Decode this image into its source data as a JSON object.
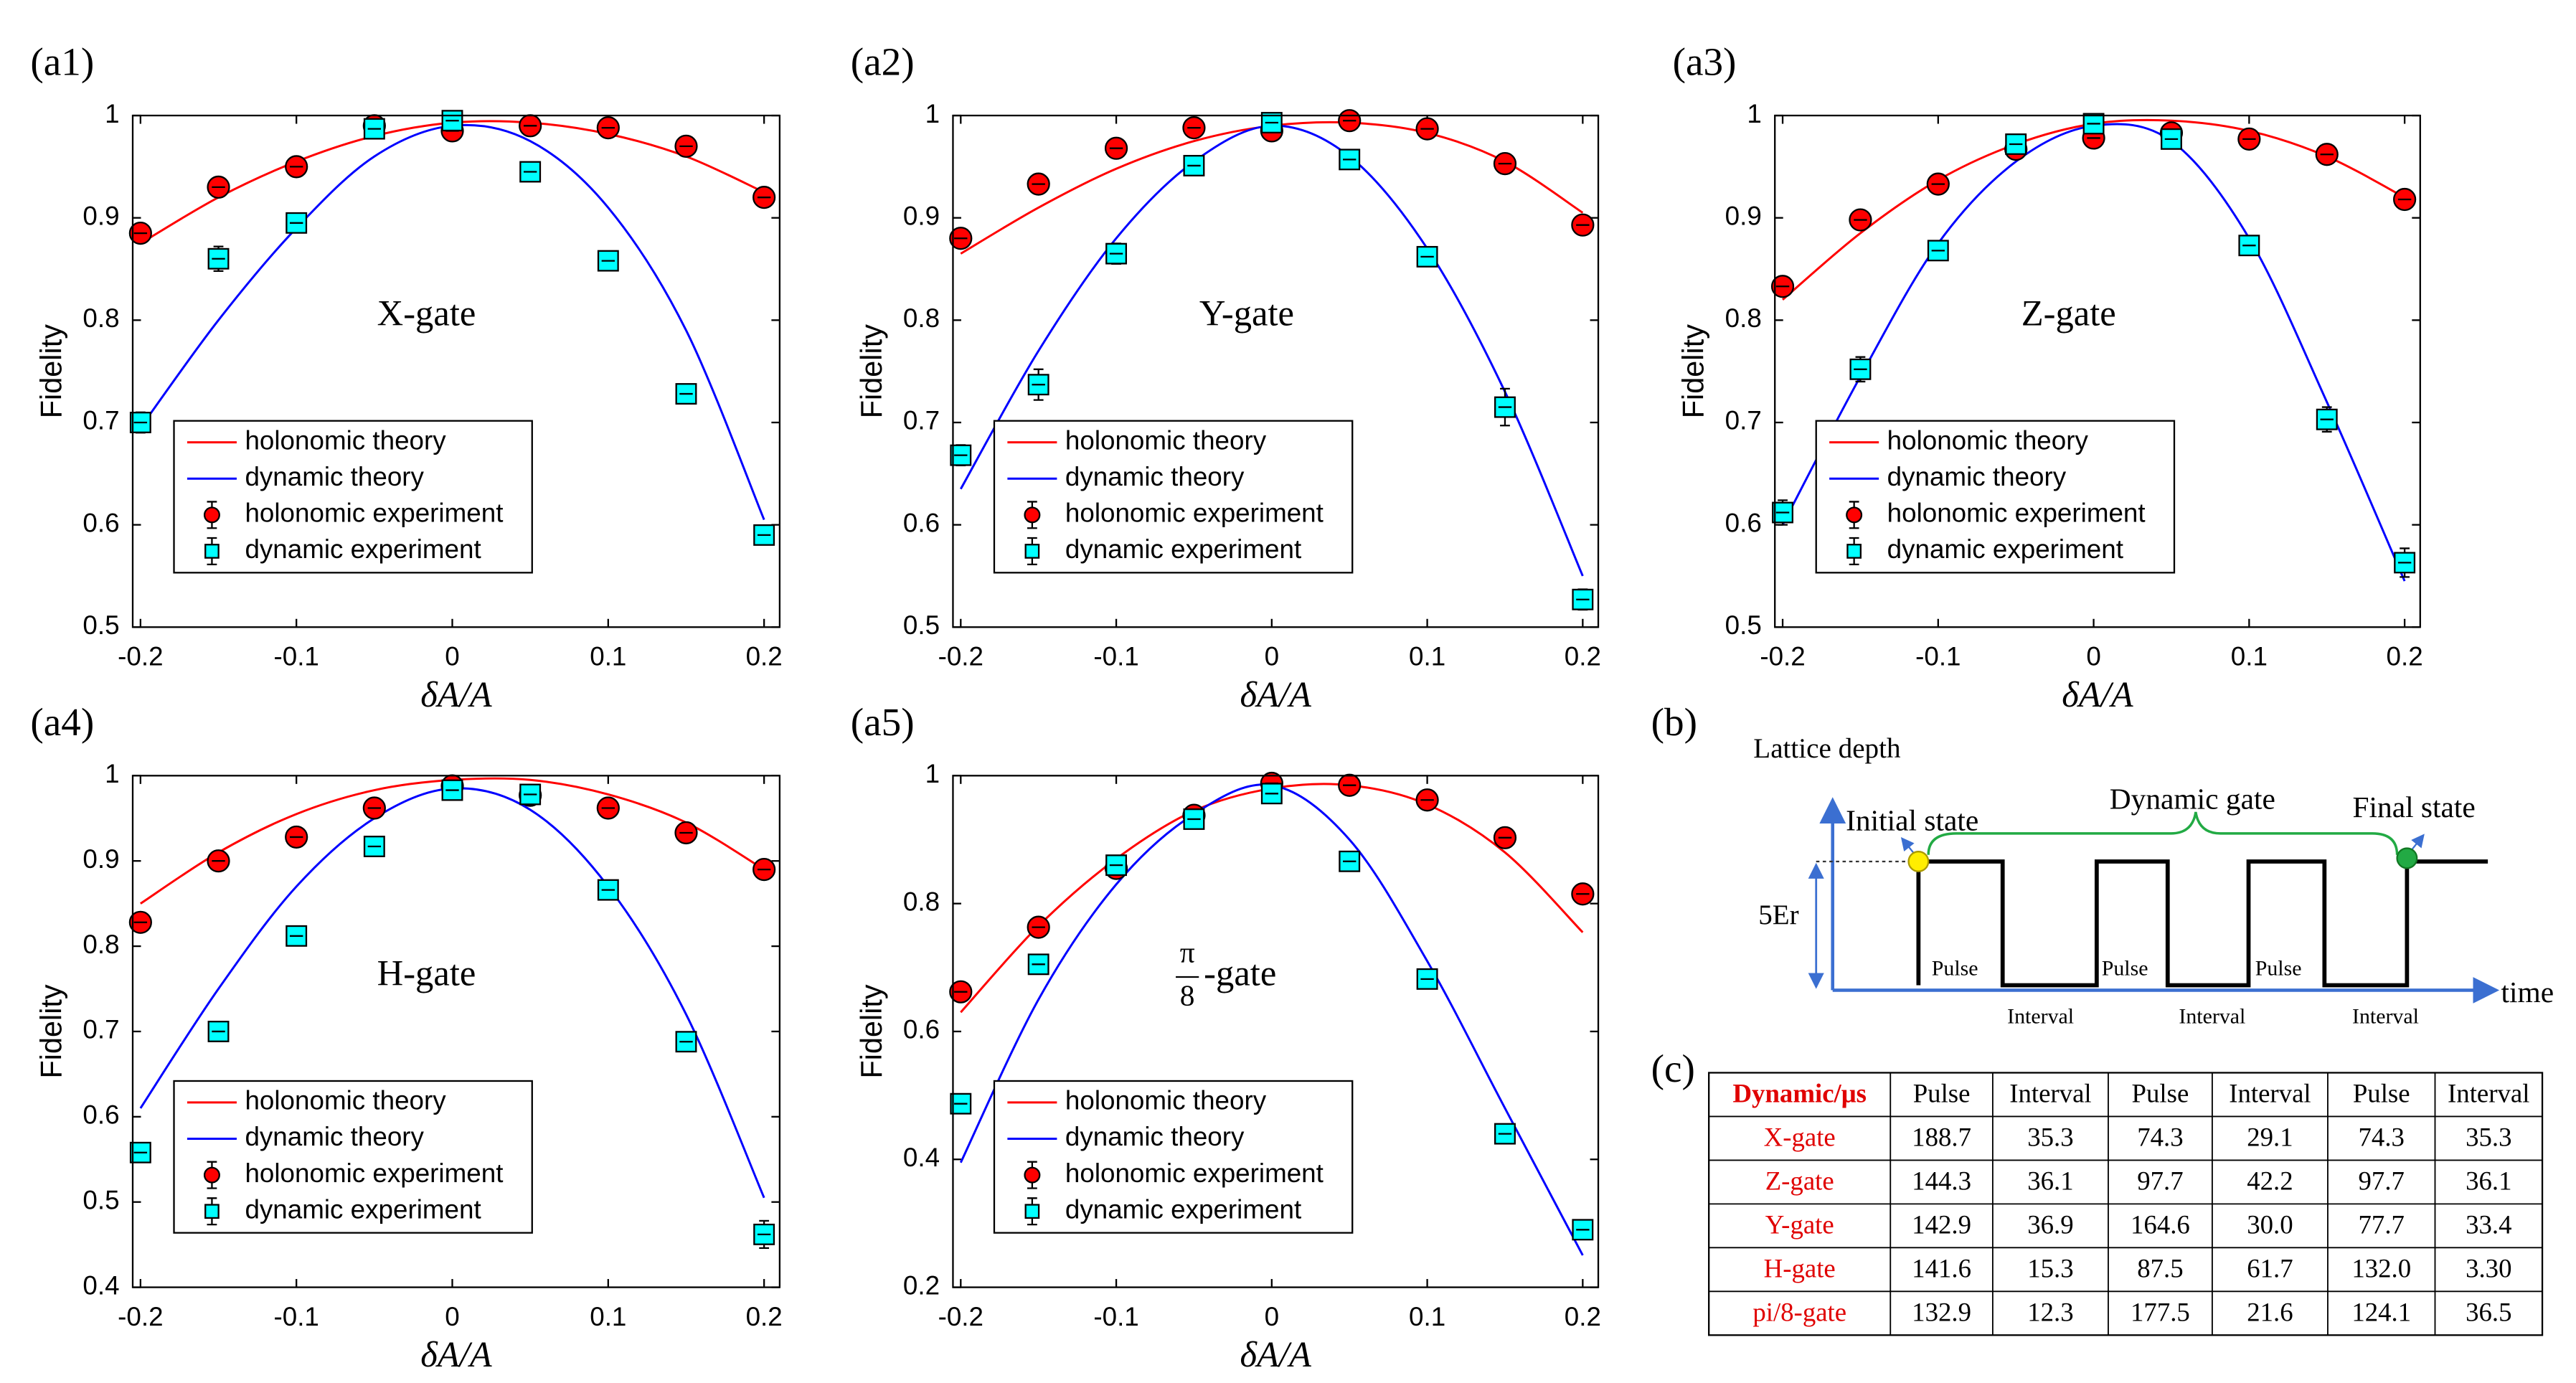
{
  "chart_data": [
    {
      "type": "line",
      "panel": "(a1)",
      "annotation": "X-gate",
      "xlabel": "δA/A",
      "ylabel": "Fidelity",
      "x": [
        -0.2,
        -0.15,
        -0.1,
        -0.05,
        0,
        0.05,
        0.1,
        0.15,
        0.2
      ],
      "xlim": [
        -0.205,
        0.21
      ],
      "xticks": [
        -0.2,
        -0.1,
        0,
        0.1,
        0.2
      ],
      "ylim": [
        0.5,
        1
      ],
      "yticks": [
        0.5,
        0.6,
        0.7,
        0.8,
        0.9,
        1
      ],
      "legend": "lower left",
      "series": [
        {
          "name": "holonomic theory",
          "color": "#ff0000",
          "style": "line",
          "values": [
            0.875,
            0.92,
            0.955,
            0.98,
            0.993,
            0.993,
            0.982,
            0.96,
            0.925
          ]
        },
        {
          "name": "dynamic theory",
          "color": "#0000ff",
          "style": "line",
          "values": [
            0.695,
            0.8,
            0.89,
            0.96,
            0.99,
            0.975,
            0.91,
            0.79,
            0.605
          ]
        },
        {
          "name": "holonomic experiment",
          "color": "#ff0000",
          "style": "circle",
          "values": [
            0.885,
            0.93,
            0.95,
            0.99,
            0.985,
            0.99,
            0.988,
            0.97,
            0.92
          ],
          "errors": [
            0.006,
            0.006,
            0.006,
            0.006,
            0.006,
            0.006,
            0.006,
            0.006,
            0.006
          ]
        },
        {
          "name": "dynamic experiment",
          "color": "#00ffff",
          "style": "square",
          "values": [
            0.7,
            0.86,
            0.895,
            0.987,
            0.995,
            0.945,
            0.858,
            0.728,
            0.59
          ],
          "errors": [
            0.01,
            0.012,
            0.008,
            0.006,
            0.006,
            0.006,
            0.006,
            0.006,
            0.006
          ]
        }
      ]
    },
    {
      "type": "line",
      "panel": "(a2)",
      "annotation": "Y-gate",
      "xlabel": "δA/A",
      "ylabel": "Fidelity",
      "x": [
        -0.2,
        -0.15,
        -0.1,
        -0.05,
        0,
        0.05,
        0.1,
        0.15,
        0.2
      ],
      "xlim": [
        -0.205,
        0.21
      ],
      "xticks": [
        -0.2,
        -0.1,
        0,
        0.1,
        0.2
      ],
      "ylim": [
        0.5,
        1
      ],
      "yticks": [
        0.5,
        0.6,
        0.7,
        0.8,
        0.9,
        1
      ],
      "legend": "lower left",
      "series": [
        {
          "name": "holonomic theory",
          "color": "#ff0000",
          "style": "line",
          "values": [
            0.865,
            0.91,
            0.948,
            0.975,
            0.99,
            0.993,
            0.983,
            0.955,
            0.905
          ]
        },
        {
          "name": "dynamic theory",
          "color": "#0000ff",
          "style": "line",
          "values": [
            0.635,
            0.77,
            0.88,
            0.955,
            0.99,
            0.96,
            0.87,
            0.73,
            0.55
          ]
        },
        {
          "name": "holonomic experiment",
          "color": "#ff0000",
          "style": "circle",
          "values": [
            0.88,
            0.933,
            0.968,
            0.988,
            0.985,
            0.995,
            0.987,
            0.953,
            0.893
          ],
          "errors": [
            0.006,
            0.006,
            0.006,
            0.006,
            0.006,
            0.006,
            0.006,
            0.006,
            0.006
          ]
        },
        {
          "name": "dynamic experiment",
          "color": "#00ffff",
          "style": "square",
          "values": [
            0.668,
            0.737,
            0.865,
            0.951,
            0.993,
            0.957,
            0.862,
            0.715,
            0.527
          ],
          "errors": [
            0.01,
            0.015,
            0.01,
            0.006,
            0.006,
            0.006,
            0.006,
            0.018,
            0.01
          ]
        }
      ]
    },
    {
      "type": "line",
      "panel": "(a3)",
      "annotation": "Z-gate",
      "xlabel": "δA/A",
      "ylabel": "Fidelity",
      "x": [
        -0.2,
        -0.15,
        -0.1,
        -0.05,
        0,
        0.05,
        0.1,
        0.15,
        0.2
      ],
      "xlim": [
        -0.205,
        0.21
      ],
      "xticks": [
        -0.2,
        -0.1,
        0,
        0.1,
        0.2
      ],
      "ylim": [
        0.5,
        1
      ],
      "yticks": [
        0.5,
        0.6,
        0.7,
        0.8,
        0.9,
        1
      ],
      "legend": "lower left",
      "series": [
        {
          "name": "holonomic theory",
          "color": "#ff0000",
          "style": "line",
          "values": [
            0.82,
            0.885,
            0.937,
            0.972,
            0.992,
            0.995,
            0.985,
            0.96,
            0.92
          ]
        },
        {
          "name": "dynamic theory",
          "color": "#0000ff",
          "style": "line",
          "values": [
            0.6,
            0.745,
            0.875,
            0.955,
            0.99,
            0.975,
            0.88,
            0.72,
            0.545
          ]
        },
        {
          "name": "holonomic experiment",
          "color": "#ff0000",
          "style": "circle",
          "values": [
            0.833,
            0.898,
            0.933,
            0.967,
            0.978,
            0.983,
            0.977,
            0.962,
            0.918
          ],
          "errors": [
            0.006,
            0.006,
            0.006,
            0.006,
            0.006,
            0.006,
            0.006,
            0.006,
            0.006
          ]
        },
        {
          "name": "dynamic experiment",
          "color": "#00ffff",
          "style": "square",
          "values": [
            0.612,
            0.752,
            0.868,
            0.972,
            0.992,
            0.977,
            0.873,
            0.703,
            0.563
          ],
          "errors": [
            0.012,
            0.012,
            0.008,
            0.006,
            0.006,
            0.006,
            0.006,
            0.012,
            0.014
          ]
        }
      ]
    },
    {
      "type": "line",
      "panel": "(a4)",
      "annotation": "H-gate",
      "xlabel": "δA/A",
      "ylabel": "Fidelity",
      "x": [
        -0.2,
        -0.15,
        -0.1,
        -0.05,
        0,
        0.05,
        0.1,
        0.15,
        0.2
      ],
      "xlim": [
        -0.205,
        0.21
      ],
      "xticks": [
        -0.2,
        -0.1,
        0,
        0.1,
        0.2
      ],
      "ylim": [
        0.4,
        1
      ],
      "yticks": [
        0.4,
        0.5,
        0.6,
        0.7,
        0.8,
        0.9,
        1
      ],
      "legend": "lower left",
      "series": [
        {
          "name": "holonomic theory",
          "color": "#ff0000",
          "style": "line",
          "values": [
            0.85,
            0.91,
            0.955,
            0.983,
            0.995,
            0.995,
            0.978,
            0.945,
            0.89
          ]
        },
        {
          "name": "dynamic theory",
          "color": "#0000ff",
          "style": "line",
          "values": [
            0.61,
            0.75,
            0.87,
            0.95,
            0.985,
            0.96,
            0.87,
            0.72,
            0.505
          ]
        },
        {
          "name": "holonomic experiment",
          "color": "#ff0000",
          "style": "circle",
          "values": [
            0.828,
            0.9,
            0.928,
            0.962,
            0.988,
            0.977,
            0.962,
            0.933,
            0.89
          ],
          "errors": [
            0.006,
            0.006,
            0.006,
            0.006,
            0.006,
            0.006,
            0.006,
            0.006,
            0.006
          ]
        },
        {
          "name": "dynamic experiment",
          "color": "#00ffff",
          "style": "square",
          "values": [
            0.558,
            0.7,
            0.812,
            0.917,
            0.983,
            0.978,
            0.866,
            0.688,
            0.462
          ],
          "errors": [
            0.006,
            0.006,
            0.006,
            0.008,
            0.008,
            0.01,
            0.006,
            0.006,
            0.016
          ]
        }
      ]
    },
    {
      "type": "line",
      "panel": "(a5)",
      "annotation": {
        "numerator": "π",
        "denominator": "8",
        "text": "-gate"
      },
      "xlabel": "δA/A",
      "ylabel": "Fidelity",
      "x": [
        -0.2,
        -0.15,
        -0.1,
        -0.05,
        0,
        0.05,
        0.1,
        0.15,
        0.2
      ],
      "xlim": [
        -0.205,
        0.21
      ],
      "xticks": [
        -0.2,
        -0.1,
        0,
        0.1,
        0.2
      ],
      "ylim": [
        0.2,
        1
      ],
      "yticks": [
        0.2,
        0.4,
        0.6,
        0.8,
        1
      ],
      "legend": "lower left",
      "series": [
        {
          "name": "holonomic theory",
          "color": "#ff0000",
          "style": "line",
          "values": [
            0.63,
            0.765,
            0.87,
            0.945,
            0.98,
            0.985,
            0.955,
            0.88,
            0.755
          ]
        },
        {
          "name": "dynamic theory",
          "color": "#0000ff",
          "style": "line",
          "values": [
            0.395,
            0.65,
            0.83,
            0.94,
            0.985,
            0.9,
            0.71,
            0.48,
            0.25
          ]
        },
        {
          "name": "holonomic experiment",
          "color": "#ff0000",
          "style": "circle",
          "values": [
            0.662,
            0.763,
            0.855,
            0.938,
            0.988,
            0.985,
            0.962,
            0.903,
            0.815
          ],
          "errors": [
            0.01,
            0.01,
            0.01,
            0.01,
            0.01,
            0.01,
            0.01,
            0.01,
            0.01
          ]
        },
        {
          "name": "dynamic experiment",
          "color": "#00ffff",
          "style": "square",
          "values": [
            0.487,
            0.705,
            0.86,
            0.932,
            0.972,
            0.866,
            0.682,
            0.44,
            0.29
          ],
          "errors": [
            0.01,
            0.01,
            0.01,
            0.01,
            0.01,
            0.01,
            0.01,
            0.01,
            0.01
          ]
        }
      ]
    }
  ],
  "diagram": {
    "panel": "(b)",
    "y_label": "Lattice depth",
    "x_label": "time",
    "level": "5Er",
    "initial": "Initial state",
    "final": "Final state",
    "gate": "Dynamic gate",
    "pulses": [
      "Pulse",
      "Pulse",
      "Pulse"
    ],
    "intervals": [
      "Interval",
      "Interval",
      "Interval"
    ]
  },
  "table": {
    "panel": "(c)",
    "header": [
      "Dynamic/μs",
      "Pulse",
      "Interval",
      "Pulse",
      "Interval",
      "Pulse",
      "Interval"
    ],
    "rows": [
      [
        "X-gate",
        "188.7",
        "35.3",
        "74.3",
        "29.1",
        "74.3",
        "35.3"
      ],
      [
        "Z-gate",
        "144.3",
        "36.1",
        "97.7",
        "42.2",
        "97.7",
        "36.1"
      ],
      [
        "Y-gate",
        "142.9",
        "36.9",
        "164.6",
        "30.0",
        "77.7",
        "33.4"
      ],
      [
        "H-gate",
        "141.6",
        "15.3",
        "87.5",
        "61.7",
        "132.0",
        "3.30"
      ],
      [
        "pi/8-gate",
        "132.9",
        "12.3",
        "177.5",
        "21.6",
        "124.1",
        "36.5"
      ]
    ]
  }
}
